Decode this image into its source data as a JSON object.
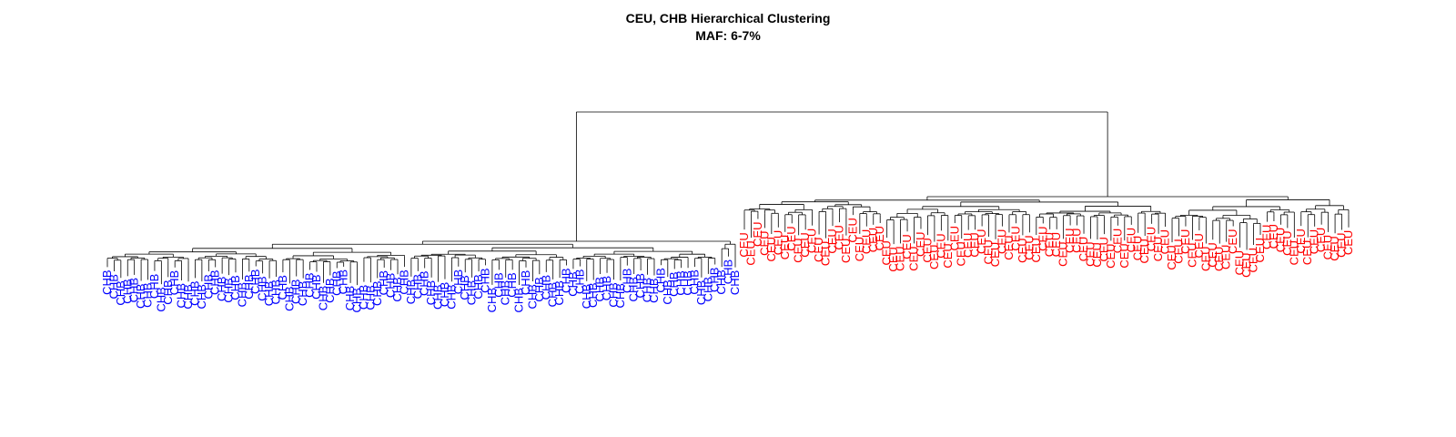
{
  "figure": {
    "title": "CEU, CHB Hierarchical Clustering",
    "subtitle": "MAF: 6-7%"
  },
  "colors": {
    "CHB": "#0000ff",
    "CEU": "#ff0000",
    "branch": "#000000",
    "background": "#ffffff"
  },
  "chart_data": {
    "type": "dendrogram",
    "title": "CEU, CHB Hierarchical Clustering",
    "subtitle": "MAF: 6-7%",
    "legend": "none",
    "clusters": [
      {
        "label": "CHB",
        "leaf_count": 94
      },
      {
        "label": "CEU",
        "leaf_count": 90
      }
    ]
  }
}
